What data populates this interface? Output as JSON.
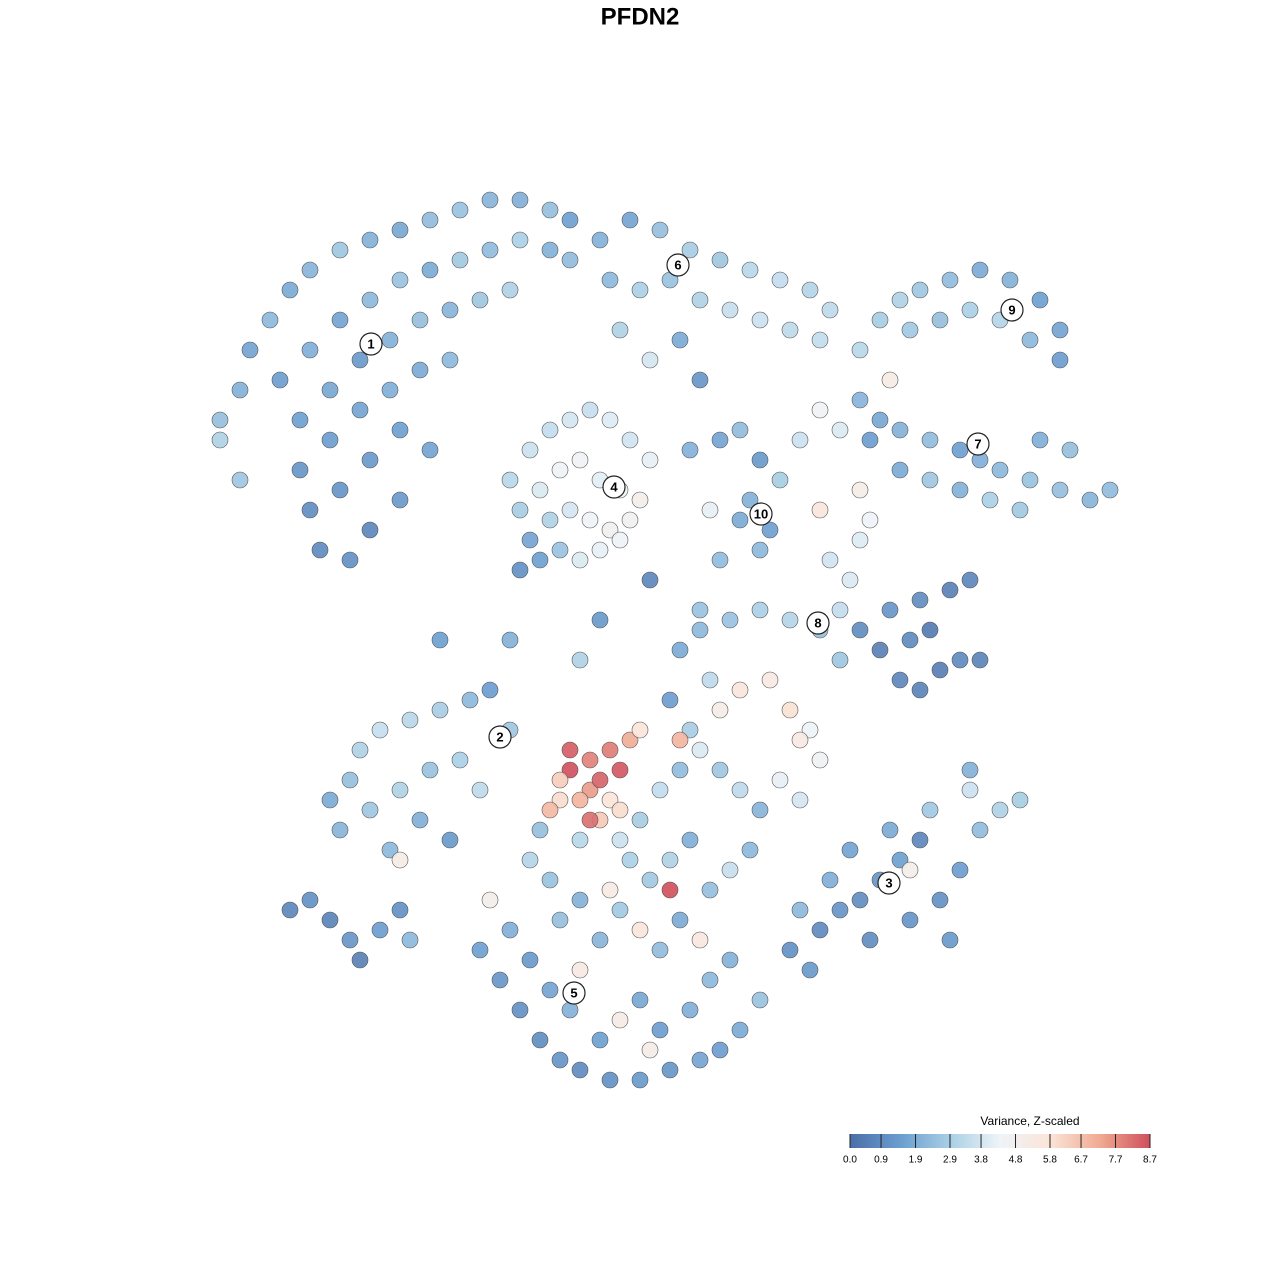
{
  "chart_data": {
    "type": "scatter",
    "title": "PFDN2",
    "xlim": [
      0,
      128
    ],
    "ylim": [
      0,
      128
    ],
    "x": [
      22,
      24,
      25,
      27,
      29,
      31,
      34,
      37,
      40,
      43,
      46,
      49,
      52,
      55,
      57,
      28,
      31,
      34,
      37,
      40,
      43,
      46,
      49,
      52,
      55,
      30,
      33,
      36,
      39,
      42,
      45,
      48,
      51,
      30,
      33,
      36,
      39,
      42,
      45,
      31,
      34,
      37,
      40,
      32,
      35,
      37,
      40,
      43,
      24,
      22,
      57,
      60,
      63,
      66,
      69,
      72,
      75,
      78,
      81,
      83,
      61,
      64,
      67,
      70,
      73,
      76,
      79,
      82,
      68,
      70,
      62,
      65,
      88,
      90,
      92,
      95,
      98,
      101,
      104,
      106,
      106,
      91,
      94,
      97,
      100,
      103,
      86,
      86,
      88,
      90,
      93,
      96,
      98,
      100,
      103,
      106,
      109,
      111,
      87,
      90,
      93,
      96,
      99,
      102,
      104,
      107,
      89,
      51,
      53,
      55,
      57,
      59,
      61,
      63,
      65,
      52,
      54,
      56,
      58,
      60,
      62,
      64,
      53,
      55,
      57,
      59,
      61,
      63,
      56,
      58,
      60,
      62,
      52,
      54,
      69,
      72,
      74,
      76,
      78,
      80,
      82,
      84,
      86,
      87,
      75,
      77,
      76,
      74,
      83,
      85,
      84,
      86,
      82,
      71,
      86,
      88,
      90,
      92,
      94,
      96,
      98,
      89,
      92,
      95,
      97,
      93,
      91,
      68,
      70,
      73,
      76,
      79,
      82,
      84,
      71,
      74,
      77,
      79,
      81,
      72,
      80,
      67,
      69,
      33,
      35,
      36,
      38,
      41,
      44,
      47,
      49,
      51,
      34,
      37,
      40,
      43,
      46,
      39,
      40,
      42,
      45,
      48,
      57,
      59,
      61,
      62,
      57,
      59,
      60,
      58,
      56,
      55,
      61,
      63,
      60,
      59,
      56,
      62,
      64,
      68,
      53,
      55,
      58,
      62,
      64,
      66,
      68,
      70,
      72,
      74,
      76,
      78,
      80,
      82,
      65,
      67,
      69,
      71,
      73,
      75,
      67,
      63,
      58,
      54,
      79,
      81,
      82,
      84,
      86,
      88,
      90,
      92,
      94,
      96,
      98,
      100,
      102,
      97,
      93,
      89,
      85,
      83,
      87,
      91,
      95,
      80,
      97,
      91,
      48,
      50,
      52,
      54,
      56,
      58,
      61,
      64,
      67,
      70,
      72,
      74,
      51,
      53,
      55,
      57,
      60,
      62,
      64,
      66,
      69,
      71,
      73,
      58,
      60,
      62,
      64,
      66,
      68,
      70,
      61,
      56,
      65,
      76,
      49,
      29,
      31,
      33,
      35,
      36,
      38,
      40,
      41,
      44,
      51,
      58,
      60,
      65,
      70,
      72
    ],
    "y": [
      86,
      89,
      93,
      96,
      99,
      101,
      103,
      104,
      105,
      106,
      107,
      108,
      108,
      107,
      106,
      90,
      93,
      96,
      98,
      100,
      101,
      102,
      103,
      104,
      103,
      86,
      89,
      92,
      94,
      96,
      97,
      98,
      99,
      81,
      84,
      87,
      89,
      91,
      92,
      77,
      79,
      82,
      85,
      73,
      72,
      75,
      78,
      83,
      80,
      84,
      102,
      104,
      106,
      105,
      103,
      102,
      101,
      100,
      99,
      97,
      100,
      99,
      100,
      98,
      97,
      96,
      95,
      94,
      94,
      90,
      95,
      92,
      96,
      98,
      99,
      100,
      101,
      100,
      98,
      95,
      92,
      95,
      96,
      97,
      96,
      94,
      93,
      88,
      86,
      85,
      84,
      83,
      82,
      81,
      80,
      79,
      78,
      79,
      84,
      81,
      80,
      79,
      78,
      77,
      84,
      83,
      90,
      80,
      83,
      85,
      86,
      87,
      86,
      84,
      82,
      77,
      79,
      81,
      82,
      80,
      79,
      78,
      74,
      76,
      77,
      76,
      75,
      76,
      73,
      72,
      73,
      74,
      71,
      72,
      83,
      84,
      85,
      82,
      80,
      84,
      87,
      85,
      79,
      76,
      78,
      75,
      73,
      76,
      72,
      70,
      67,
      74,
      77,
      77,
      65,
      63,
      60,
      59,
      61,
      62,
      62,
      67,
      68,
      69,
      70,
      65,
      64,
      63,
      65,
      66,
      67,
      66,
      65,
      62,
      60,
      59,
      60,
      57,
      55,
      57,
      54,
      58,
      55,
      48,
      50,
      53,
      55,
      56,
      57,
      58,
      59,
      55,
      45,
      47,
      49,
      51,
      52,
      43,
      42,
      46,
      44,
      49,
      53,
      52,
      53,
      51,
      51,
      49,
      50,
      48,
      48,
      47,
      48,
      54,
      46,
      46,
      50,
      47,
      55,
      54,
      42,
      40,
      38,
      44,
      46,
      49,
      51,
      53,
      51,
      49,
      47,
      50,
      48,
      52,
      40,
      42,
      44,
      39,
      41,
      43,
      39,
      42,
      44,
      45,
      33,
      31,
      35,
      37,
      38,
      40,
      42,
      44,
      38,
      41,
      45,
      47,
      48,
      49,
      47,
      45,
      43,
      40,
      34,
      36,
      34,
      37,
      51,
      41,
      33,
      30,
      27,
      24,
      22,
      21,
      20,
      20,
      21,
      22,
      23,
      25,
      35,
      32,
      29,
      27,
      24,
      26,
      28,
      25,
      27,
      30,
      32,
      31,
      34,
      37,
      35,
      33,
      36,
      34,
      39,
      36,
      23,
      28,
      38,
      37,
      38,
      36,
      34,
      32,
      35,
      37,
      34,
      64,
      64,
      62,
      66,
      70,
      67,
      72
    ],
    "values": [
      2.4,
      2.0,
      1.6,
      2.2,
      1.8,
      2.1,
      2.6,
      2.0,
      1.7,
      2.3,
      2.5,
      2.1,
      1.9,
      2.4,
      1.5,
      1.4,
      1.9,
      1.6,
      2.2,
      2.5,
      1.8,
      2.7,
      2.3,
      2.9,
      2.0,
      1.5,
      1.7,
      1.3,
      2.0,
      2.4,
      2.1,
      2.6,
      3.0,
      1.2,
      1.4,
      1.6,
      1.9,
      1.8,
      2.2,
      0.9,
      1.1,
      1.3,
      1.5,
      0.8,
      1.0,
      0.7,
      1.3,
      1.6,
      2.6,
      3.0,
      2.3,
      2.0,
      1.6,
      2.4,
      2.8,
      2.6,
      3.2,
      3.4,
      3.1,
      3.3,
      2.2,
      2.9,
      2.5,
      3.0,
      3.5,
      3.6,
      3.3,
      3.4,
      1.8,
      1.2,
      3.0,
      3.8,
      2.8,
      3.0,
      2.6,
      2.3,
      1.8,
      2.0,
      1.5,
      1.6,
      1.4,
      2.7,
      2.4,
      2.9,
      3.1,
      2.2,
      3.2,
      2.1,
      1.7,
      2.0,
      2.3,
      1.5,
      1.9,
      2.2,
      2.5,
      2.4,
      2.1,
      2.3,
      1.4,
      1.8,
      2.6,
      2.0,
      2.9,
      2.7,
      1.9,
      2.4,
      5.3,
      3.2,
      3.6,
      3.4,
      3.8,
      3.5,
      4.0,
      3.7,
      4.2,
      2.8,
      3.9,
      4.3,
      4.5,
      4.1,
      4.6,
      5.0,
      1.6,
      3.0,
      3.8,
      4.4,
      4.8,
      4.7,
      2.5,
      3.9,
      4.2,
      4.3,
      1.0,
      1.5,
      2.0,
      1.6,
      2.3,
      1.3,
      2.8,
      3.6,
      4.5,
      3.9,
      5.1,
      4.4,
      2.0,
      1.5,
      2.2,
      1.8,
      3.7,
      3.9,
      3.4,
      4.0,
      5.6,
      4.2,
      0.9,
      0.5,
      0.7,
      0.6,
      0.4,
      0.8,
      0.6,
      1.2,
      0.9,
      0.5,
      0.7,
      0.3,
      0.8,
      1.8,
      2.2,
      2.5,
      2.9,
      3.1,
      2.4,
      2.6,
      3.3,
      5.6,
      5.4,
      5.9,
      4.3,
      5.2,
      5.4,
      1.4,
      2.8,
      1.8,
      2.4,
      3.0,
      3.5,
      3.2,
      2.8,
      2.2,
      1.4,
      2.6,
      2.1,
      2.6,
      3.0,
      2.5,
      2.9,
      2.2,
      5.2,
      1.9,
      1.3,
      3.3,
      8.5,
      7.9,
      8.0,
      8.6,
      8.7,
      7.5,
      8.4,
      7.0,
      6.0,
      6.9,
      5.8,
      7.2,
      6.5,
      8.2,
      6.4,
      6.0,
      5.8,
      7.0,
      3.1,
      2.5,
      2.0,
      3.6,
      2.8,
      3.4,
      2.3,
      3.9,
      2.6,
      3.3,
      2.1,
      4.2,
      3.8,
      4.6,
      2.7,
      3.0,
      1.9,
      2.4,
      3.5,
      2.2,
      8.7,
      2.9,
      3.2,
      2.4,
      1.0,
      1.3,
      0.8,
      1.1,
      0.9,
      1.2,
      1.5,
      0.7,
      1.0,
      1.4,
      2.3,
      3.0,
      2.8,
      3.6,
      2.7,
      1.8,
      1.6,
      1.9,
      0.9,
      1.1,
      1.3,
      2.2,
      2.0,
      5.0,
      1.5,
      1.2,
      1.0,
      0.9,
      1.1,
      0.8,
      1.0,
      1.3,
      1.2,
      1.6,
      1.4,
      1.8,
      1.9,
      1.3,
      1.6,
      2.0,
      1.5,
      5.2,
      1.7,
      1.4,
      1.9,
      2.2,
      2.0,
      5.4,
      2.1,
      2.7,
      5.6,
      2.3,
      1.8,
      5.5,
      5.3,
      2.4,
      5.2,
      2.5,
      5.0,
      0.7,
      1.0,
      0.6,
      1.2,
      0.5,
      1.4,
      1.0,
      2.2,
      1.5,
      2.0,
      3.0,
      1.3,
      0.7,
      2.5,
      2.3
    ],
    "cluster_labels": {
      "labels": [
        "1",
        "6",
        "9",
        "7",
        "4",
        "10",
        "8",
        "2",
        "3",
        "5"
      ],
      "x": [
        37.1,
        67.8,
        101.2,
        97.8,
        61.4,
        76.1,
        81.8,
        50.0,
        88.9,
        57.4
      ],
      "y": [
        93.6,
        101.5,
        97.0,
        83.6,
        79.3,
        76.6,
        65.7,
        54.3,
        39.7,
        28.7
      ]
    },
    "colorbar": {
      "title": "Variance, Z-scaled",
      "clim": [
        0,
        8.7
      ],
      "colors": [
        "#4b6fa8",
        "#6a9dcf",
        "#a9cfe5",
        "#eef4f8",
        "#fbe4d8",
        "#f0aa92",
        "#cf4f5c"
      ],
      "ticks": [
        {
          "value": 0,
          "label": "0.0"
        },
        0.9,
        1.9,
        2.9,
        3.8,
        4.8,
        5.8,
        6.7,
        7.7,
        8.7
      ]
    }
  }
}
